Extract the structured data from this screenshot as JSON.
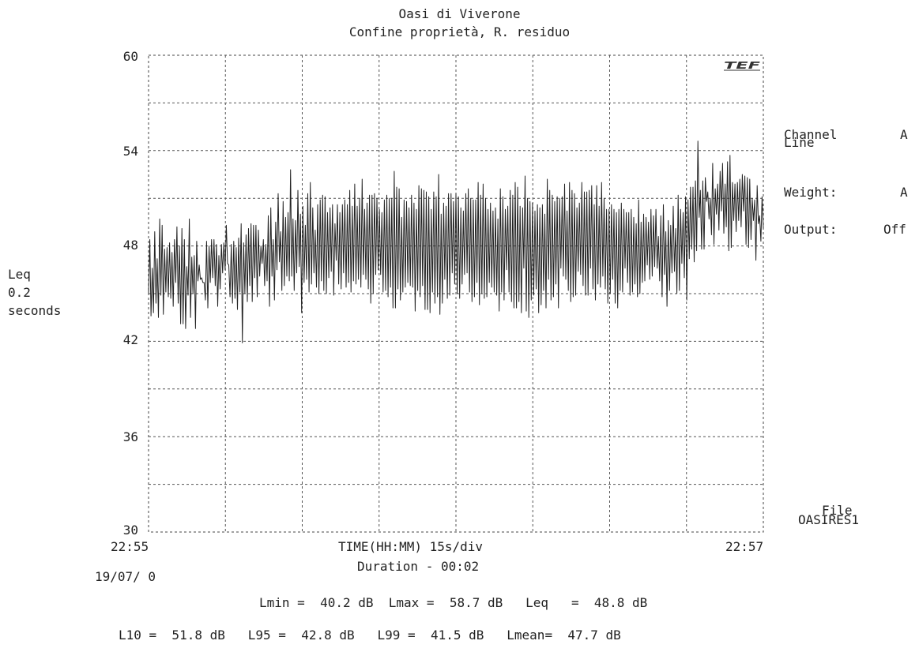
{
  "chart_data": {
    "type": "line",
    "title": "Oasi di Viverone",
    "subtitle": "Confine proprietà, R. residuo",
    "ylabel_lines": [
      "Leq",
      "0.2",
      "seconds"
    ],
    "xlabel": "TIME(HH:MM) 15s/div",
    "duration": "Duration - 00:02",
    "date": "19/07/ 0",
    "x_start": "22:55",
    "x_end": "22:57",
    "ylim": [
      30,
      60
    ],
    "yticks": [
      "60",
      "54",
      "48",
      "42",
      "36",
      "30"
    ],
    "grid": true,
    "logo": "TEF",
    "series": [
      {
        "values": [
          45.0,
          48.4,
          43.6,
          46.6,
          43.8,
          48.9,
          44.4,
          47.2,
          43.5,
          49.7,
          44.9,
          49.3,
          43.7,
          47.8,
          45.1,
          47.9,
          44.8,
          48.2,
          44.7,
          47.6,
          44.2,
          48.4,
          45.7,
          49.2,
          44.4,
          48.0,
          43.1,
          49.1,
          43.1,
          48.4,
          42.8,
          46.7,
          44.9,
          49.7,
          43.5,
          47.3,
          45.0,
          47.4,
          42.8,
          48.3,
          45.8,
          46.8,
          45.9,
          46.0,
          45.7,
          45.7,
          44.6,
          48.3,
          44.1,
          48.0,
          45.7,
          48.4,
          46.0,
          48.4,
          45.5,
          48.1,
          44.2,
          47.4,
          45.3,
          48.1,
          46.3,
          48.2,
          46.5,
          49.3,
          46.9,
          46.8,
          44.8,
          48.1,
          44.4,
          48.3,
          44.7,
          47.9,
          44.0,
          48.5,
          45.1,
          49.4,
          41.9,
          48.2,
          45.0,
          48.7,
          44.5,
          49.1,
          45.5,
          49.4,
          44.5,
          49.3,
          46.0,
          49.3,
          44.8,
          49.0,
          46.1,
          48.0,
          46.9,
          48.4,
          45.5,
          48.1,
          45.8,
          49.9,
          44.2,
          50.4,
          46.1,
          48.4,
          44.6,
          49.5,
          46.5,
          51.3,
          47.0,
          48.9,
          45.2,
          50.8,
          45.5,
          49.8,
          46.1,
          50.1,
          45.8,
          52.8,
          46.1,
          49.7,
          45.2,
          49.6,
          46.3,
          51.5,
          46.7,
          50.0,
          43.8,
          50.5,
          45.7,
          49.3,
          45.9,
          51.3,
          45.1,
          52.0,
          45.6,
          50.4,
          46.3,
          49.0,
          45.4,
          50.6,
          45.0,
          50.9,
          45.8,
          51.2,
          45.2,
          51.1,
          45.0,
          50.1,
          46.0,
          50.4,
          46.4,
          50.6,
          44.9,
          49.4,
          47.1,
          50.6,
          45.6,
          50.1,
          45.3,
          50.6,
          46.3,
          50.9,
          45.4,
          50.6,
          45.7,
          51.5,
          45.1,
          50.5,
          45.8,
          51.9,
          45.6,
          50.5,
          45.9,
          51.0,
          45.4,
          52.2,
          46.2,
          50.3,
          45.9,
          50.7,
          45.3,
          51.2,
          44.4,
          51.2,
          45.0,
          51.3,
          46.2,
          51.0,
          46.5,
          50.3,
          46.2,
          50.1,
          45.1,
          50.9,
          45.2,
          51.2,
          44.8,
          51.0,
          45.4,
          51.0,
          44.1,
          52.7,
          44.1,
          51.7,
          45.3,
          51.6,
          44.6,
          49.8,
          45.1,
          50.9,
          45.4,
          50.8,
          45.7,
          50.4,
          45.5,
          51.2,
          45.4,
          50.7,
          43.9,
          50.3,
          45.2,
          51.8,
          44.8,
          51.6,
          45.5,
          51.5,
          44.0,
          51.4,
          44.0,
          51.1,
          43.8,
          50.3,
          45.1,
          51.4,
          44.4,
          51.1,
          44.8,
          52.5,
          43.7,
          50.0,
          44.4,
          50.7,
          45.9,
          50.5,
          44.7,
          51.3,
          44.9,
          51.3,
          46.3,
          50.8,
          45.6,
          51.3,
          45.0,
          51.1,
          44.7,
          50.4,
          45.6,
          50.2,
          46.2,
          51.3,
          46.3,
          51.6,
          45.1,
          51.0,
          44.5,
          50.9,
          44.8,
          50.9,
          45.7,
          52.0,
          44.3,
          51.2,
          45.0,
          51.9,
          44.7,
          51.0,
          44.8,
          50.3,
          45.7,
          50.7,
          45.4,
          50.2,
          45.1,
          50.4,
          44.9,
          49.7,
          43.9,
          51.6,
          45.1,
          51.1,
          44.6,
          50.3,
          46.5,
          50.5,
          45.1,
          51.5,
          44.5,
          51.2,
          44.1,
          52.0,
          44.1,
          51.7,
          44.5,
          50.5,
          43.8,
          50.4,
          46.6,
          52.4,
          43.9,
          51.0,
          43.5,
          50.8,
          44.6,
          50.7,
          44.9,
          50.2,
          45.3,
          50.6,
          43.8,
          50.4,
          44.3,
          50.6,
          45.2,
          50.0,
          44.1,
          52.2,
          45.9,
          51.5,
          44.6,
          51.2,
          44.8,
          50.8,
          45.6,
          51.1,
          44.1,
          51.0,
          46.6,
          51.1,
          46.1,
          51.9,
          45.9,
          50.2,
          45.2,
          52.0,
          44.5,
          51.5,
          44.8,
          51.3,
          44.9,
          50.4,
          46.4,
          50.7,
          46.2,
          52.0,
          45.5,
          51.4,
          44.9,
          51.4,
          44.9,
          51.5,
          46.6,
          51.8,
          45.3,
          50.6,
          44.6,
          51.8,
          45.6,
          50.5,
          45.4,
          52.0,
          46.1,
          51.0,
          45.3,
          50.3,
          44.4,
          50.3,
          45.0,
          50.6,
          45.9,
          50.3,
          44.4,
          50.1,
          44.1,
          50.3,
          45.2,
          50.7,
          45.1,
          50.3,
          46.6,
          50.1,
          45.7,
          50.1,
          44.9,
          50.3,
          45.1,
          49.8,
          45.6,
          49.4,
          44.8,
          50.9,
          45.0,
          49.5,
          45.7,
          50.0,
          45.8,
          49.8,
          46.8,
          49.5,
          45.9,
          50.3,
          46.1,
          49.9,
          46.7,
          50.3,
          46.6,
          48.6,
          45.8,
          49.9,
          44.8,
          50.6,
          46.2,
          48.9,
          44.2,
          49.6,
          45.2,
          49.3,
          46.3,
          50.5,
          46.4,
          49.1,
          45.0,
          51.2,
          45.2,
          50.3,
          46.9,
          50.1,
          46.0,
          51.1,
          44.6,
          50.9,
          47.2,
          51.7,
          47.8,
          51.7,
          47.0,
          52.1,
          47.7,
          54.6,
          49.8,
          51.5,
          47.8,
          52.1,
          47.8,
          52.3,
          50.8,
          51.4,
          49.7,
          51.0,
          48.7,
          53.2,
          48.1,
          51.6,
          50.0,
          51.9,
          49.0,
          52.7,
          50.2,
          53.2,
          48.8,
          51.9,
          49.2,
          53.3,
          47.7,
          53.7,
          47.9,
          52.0,
          49.6,
          51.9,
          48.9,
          52.0,
          49.6,
          52.2,
          49.2,
          52.5,
          50.2,
          52.4,
          48.1,
          52.3,
          47.9,
          52.2,
          48.4,
          51.0,
          49.6,
          50.9,
          47.1,
          51.8,
          49.4,
          49.9,
          48.3,
          51.1,
          49.1
        ]
      }
    ],
    "info": {
      "channel_label": "Channel",
      "channel_value": "A",
      "line_label": "Line",
      "weight_label": "Weight:",
      "weight_value": "A",
      "output_label": "Output:",
      "output_value": "Off",
      "file_label": "File",
      "file_name": "OASIRES1"
    },
    "stats_line1": "Lmin =  40.2 dB  Lmax =  58.7 dB   Leq   =  48.8 dB",
    "stats_line2": "L10 =  51.8 dB   L95 =  42.8 dB   L99 =  41.5 dB   Lmean=  47.7 dB"
  }
}
